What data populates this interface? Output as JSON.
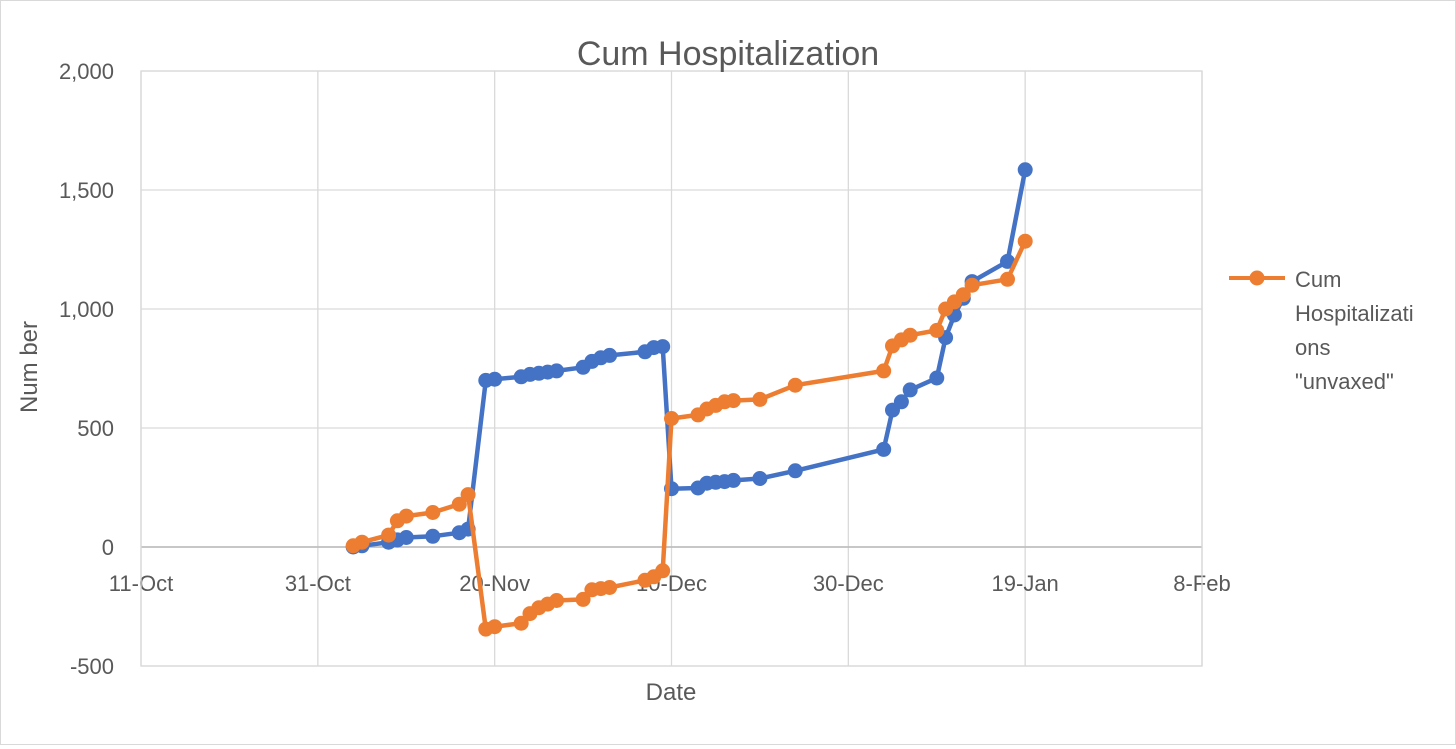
{
  "chart_data": {
    "type": "line",
    "title": "Cum Hospitalization",
    "xlabel": "Date",
    "ylabel": "Num ber",
    "xlim": [
      "2021-10-11",
      "2022-02-08"
    ],
    "ylim": [
      -500,
      2000
    ],
    "x_ticks": [
      "11-Oct",
      "31-Oct",
      "20-Nov",
      "10-Dec",
      "30-Dec",
      "19-Jan",
      "8-Feb"
    ],
    "y_ticks": [
      "-500",
      "0",
      "500",
      "1,000",
      "1,500",
      "2,000"
    ],
    "grid": true,
    "legend_position": "right",
    "series": [
      {
        "name": "",
        "color": "#4472c4",
        "points": [
          [
            "2021-11-04",
            0
          ],
          [
            "2021-11-05",
            5
          ],
          [
            "2021-11-08",
            20
          ],
          [
            "2021-11-09",
            30
          ],
          [
            "2021-11-10",
            40
          ],
          [
            "2021-11-13",
            45
          ],
          [
            "2021-11-16",
            60
          ],
          [
            "2021-11-17",
            75
          ],
          [
            "2021-11-19",
            700
          ],
          [
            "2021-11-20",
            705
          ],
          [
            "2021-11-23",
            715
          ],
          [
            "2021-11-24",
            725
          ],
          [
            "2021-11-25",
            730
          ],
          [
            "2021-11-26",
            735
          ],
          [
            "2021-11-27",
            740
          ],
          [
            "2021-11-30",
            755
          ],
          [
            "2021-12-01",
            780
          ],
          [
            "2021-12-02",
            795
          ],
          [
            "2021-12-03",
            805
          ],
          [
            "2021-12-07",
            820
          ],
          [
            "2021-12-08",
            838
          ],
          [
            "2021-12-09",
            842
          ],
          [
            "2021-12-10",
            245
          ],
          [
            "2021-12-13",
            248
          ],
          [
            "2021-12-14",
            268
          ],
          [
            "2021-12-15",
            272
          ],
          [
            "2021-12-16",
            275
          ],
          [
            "2021-12-17",
            280
          ],
          [
            "2021-12-20",
            288
          ],
          [
            "2021-12-24",
            320
          ],
          [
            "2022-01-03",
            410
          ],
          [
            "2022-01-04",
            575
          ],
          [
            "2022-01-05",
            610
          ],
          [
            "2022-01-06",
            660
          ],
          [
            "2022-01-09",
            710
          ],
          [
            "2022-01-10",
            880
          ],
          [
            "2022-01-11",
            975
          ],
          [
            "2022-01-12",
            1045
          ],
          [
            "2022-01-13",
            1115
          ],
          [
            "2022-01-17",
            1200
          ],
          [
            "2022-01-19",
            1585
          ]
        ]
      },
      {
        "name": "Cum Hospitalizations \"unvaxed\"",
        "color": "#ed7d31",
        "points": [
          [
            "2021-11-04",
            5
          ],
          [
            "2021-11-05",
            20
          ],
          [
            "2021-11-08",
            50
          ],
          [
            "2021-11-09",
            110
          ],
          [
            "2021-11-10",
            130
          ],
          [
            "2021-11-13",
            145
          ],
          [
            "2021-11-16",
            180
          ],
          [
            "2021-11-17",
            220
          ],
          [
            "2021-11-19",
            -345
          ],
          [
            "2021-11-20",
            -335
          ],
          [
            "2021-11-23",
            -320
          ],
          [
            "2021-11-24",
            -280
          ],
          [
            "2021-11-25",
            -255
          ],
          [
            "2021-11-26",
            -240
          ],
          [
            "2021-11-27",
            -225
          ],
          [
            "2021-11-30",
            -220
          ],
          [
            "2021-12-01",
            -180
          ],
          [
            "2021-12-02",
            -175
          ],
          [
            "2021-12-03",
            -170
          ],
          [
            "2021-12-07",
            -140
          ],
          [
            "2021-12-08",
            -125
          ],
          [
            "2021-12-09",
            -100
          ],
          [
            "2021-12-10",
            540
          ],
          [
            "2021-12-13",
            555
          ],
          [
            "2021-12-14",
            580
          ],
          [
            "2021-12-15",
            595
          ],
          [
            "2021-12-16",
            610
          ],
          [
            "2021-12-17",
            615
          ],
          [
            "2021-12-20",
            620
          ],
          [
            "2021-12-24",
            680
          ],
          [
            "2022-01-03",
            740
          ],
          [
            "2022-01-04",
            845
          ],
          [
            "2022-01-05",
            870
          ],
          [
            "2022-01-06",
            890
          ],
          [
            "2022-01-09",
            910
          ],
          [
            "2022-01-10",
            1000
          ],
          [
            "2022-01-11",
            1030
          ],
          [
            "2022-01-12",
            1060
          ],
          [
            "2022-01-13",
            1100
          ],
          [
            "2022-01-17",
            1125
          ],
          [
            "2022-01-19",
            1285
          ]
        ]
      }
    ]
  },
  "legend": {
    "lines": [
      "Cum",
      "Hospitalizati",
      "ons",
      "\"unvaxed\""
    ]
  }
}
